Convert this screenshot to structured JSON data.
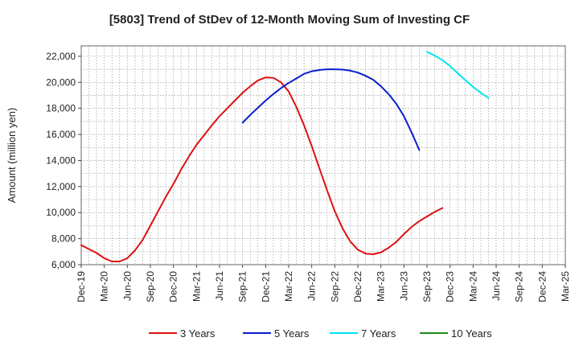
{
  "chart_data": {
    "type": "line",
    "title": "[5803]  Trend of StDev of 12-Month Moving Sum of Investing CF",
    "ylabel": "Amount (million yen)",
    "xlabel": "",
    "ylim": [
      6000,
      22800
    ],
    "yticks": [
      6000,
      8000,
      10000,
      12000,
      14000,
      16000,
      18000,
      20000,
      22000
    ],
    "ytick_labels": [
      "6,000",
      "8,000",
      "10,000",
      "12,000",
      "14,000",
      "16,000",
      "18,000",
      "20,000",
      "22,000"
    ],
    "x_categories": [
      "Dec-19",
      "Mar-20",
      "Jun-20",
      "Sep-20",
      "Dec-20",
      "Mar-21",
      "Jun-21",
      "Sep-21",
      "Dec-21",
      "Mar-22",
      "Jun-22",
      "Sep-22",
      "Dec-22",
      "Mar-23",
      "Jun-23",
      "Sep-23",
      "Dec-23",
      "Mar-24",
      "Jun-24",
      "Sep-24",
      "Dec-24",
      "Mar-25"
    ],
    "grid": true,
    "legend_position": "bottom",
    "series": [
      {
        "name": "3 Years",
        "color": "#dd1111",
        "points": [
          [
            "Dec-19",
            7500
          ],
          [
            "Jan-20",
            7200
          ],
          [
            "Feb-20",
            6900
          ],
          [
            "Mar-20",
            6500
          ],
          [
            "Apr-20",
            6250
          ],
          [
            "May-20",
            6250
          ],
          [
            "Jun-20",
            6500
          ],
          [
            "Jul-20",
            7100
          ],
          [
            "Aug-20",
            7900
          ],
          [
            "Sep-20",
            9000
          ],
          [
            "Oct-20",
            10100
          ],
          [
            "Nov-20",
            11200
          ],
          [
            "Dec-20",
            12200
          ],
          [
            "Jan-21",
            13300
          ],
          [
            "Feb-21",
            14300
          ],
          [
            "Mar-21",
            15200
          ],
          [
            "Apr-21",
            15950
          ],
          [
            "May-21",
            16700
          ],
          [
            "Jun-21",
            17400
          ],
          [
            "Jul-21",
            18000
          ],
          [
            "Aug-21",
            18600
          ],
          [
            "Sep-21",
            19200
          ],
          [
            "Oct-21",
            19700
          ],
          [
            "Nov-21",
            20150
          ],
          [
            "Dec-21",
            20380
          ],
          [
            "Jan-22",
            20350
          ],
          [
            "Feb-22",
            20000
          ],
          [
            "Mar-22",
            19300
          ],
          [
            "Apr-22",
            18100
          ],
          [
            "May-22",
            16700
          ],
          [
            "Jun-22",
            15100
          ],
          [
            "Jul-22",
            13400
          ],
          [
            "Aug-22",
            11700
          ],
          [
            "Sep-22",
            10100
          ],
          [
            "Oct-22",
            8800
          ],
          [
            "Nov-22",
            7800
          ],
          [
            "Dec-22",
            7150
          ],
          [
            "Jan-23",
            6850
          ],
          [
            "Feb-23",
            6800
          ],
          [
            "Mar-23",
            6950
          ],
          [
            "Apr-23",
            7300
          ],
          [
            "May-23",
            7750
          ],
          [
            "Jun-23",
            8350
          ],
          [
            "Jul-23",
            8900
          ],
          [
            "Aug-23",
            9350
          ],
          [
            "Sep-23",
            9700
          ],
          [
            "Oct-23",
            10050
          ],
          [
            "Nov-23",
            10350
          ]
        ]
      },
      {
        "name": "5 Years",
        "color": "#0a1fcc",
        "points": [
          [
            "Sep-21",
            16900
          ],
          [
            "Oct-21",
            17500
          ],
          [
            "Nov-21",
            18050
          ],
          [
            "Dec-21",
            18600
          ],
          [
            "Jan-22",
            19100
          ],
          [
            "Feb-22",
            19550
          ],
          [
            "Mar-22",
            19950
          ],
          [
            "Apr-22",
            20300
          ],
          [
            "May-22",
            20650
          ],
          [
            "Jun-22",
            20850
          ],
          [
            "Jul-22",
            20950
          ],
          [
            "Aug-22",
            21000
          ],
          [
            "Sep-22",
            21000
          ],
          [
            "Oct-22",
            20980
          ],
          [
            "Nov-22",
            20900
          ],
          [
            "Dec-22",
            20750
          ],
          [
            "Jan-23",
            20500
          ],
          [
            "Feb-23",
            20200
          ],
          [
            "Mar-23",
            19700
          ],
          [
            "Apr-23",
            19100
          ],
          [
            "May-23",
            18350
          ],
          [
            "Jun-23",
            17400
          ],
          [
            "Jul-23",
            16150
          ],
          [
            "Aug-23",
            14800
          ]
        ]
      },
      {
        "name": "7 Years",
        "color": "#00e5ee",
        "points": [
          [
            "Sep-23",
            22350
          ],
          [
            "Oct-23",
            22050
          ],
          [
            "Nov-23",
            21700
          ],
          [
            "Dec-23",
            21250
          ],
          [
            "Jan-24",
            20700
          ],
          [
            "Feb-24",
            20150
          ],
          [
            "Mar-24",
            19650
          ],
          [
            "Apr-24",
            19200
          ],
          [
            "May-24",
            18800
          ]
        ]
      },
      {
        "name": "10 Years",
        "color": "#1a8c1a",
        "points": []
      }
    ]
  }
}
